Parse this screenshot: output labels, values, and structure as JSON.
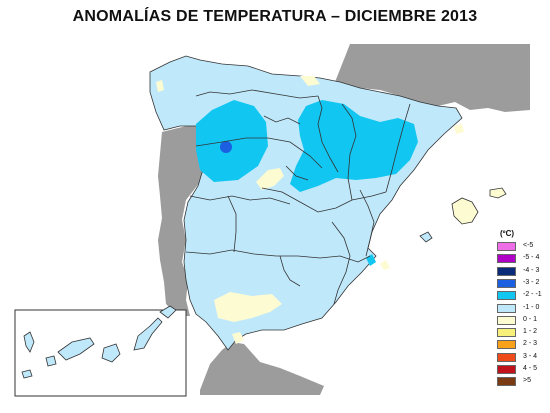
{
  "title": "ANOMALÍAS DE TEMPERATURA – DICIEMBRE 2013",
  "legend": {
    "unit": "(ºC)",
    "items": [
      {
        "label": "<-5",
        "color": "#ee6ee8"
      },
      {
        "label": "-5 - 4",
        "color": "#b000c8"
      },
      {
        "label": "-4 - 3",
        "color": "#0a2a7a"
      },
      {
        "label": "-3 - 2",
        "color": "#1a60e0"
      },
      {
        "label": "-2 - -1",
        "color": "#12c6f2"
      },
      {
        "label": "-1 - 0",
        "color": "#bfe8fb"
      },
      {
        "label": "0 - 1",
        "color": "#fdfbd2"
      },
      {
        "label": "1 - 2",
        "color": "#f7f07a"
      },
      {
        "label": "2 - 3",
        "color": "#f8a21c"
      },
      {
        "label": "3 - 4",
        "color": "#ee4a1a"
      },
      {
        "label": "4 - 5",
        "color": "#c0121a"
      },
      {
        "label": ">5",
        "color": "#7a3a12"
      }
    ]
  },
  "colors": {
    "land_other": "#9c9c9c",
    "sea": "#ffffff",
    "border": "#333333"
  }
}
